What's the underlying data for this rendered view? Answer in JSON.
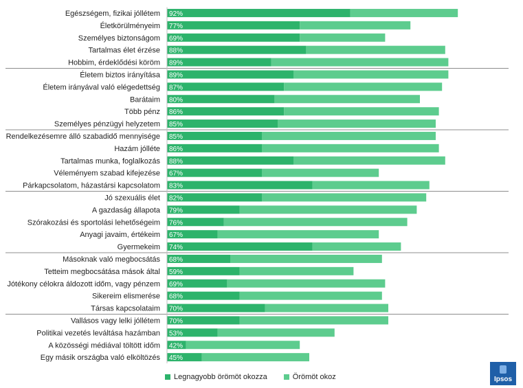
{
  "chart_data": {
    "type": "bar",
    "stacked": true,
    "orientation": "horizontal",
    "colors": {
      "series_0": "#2db36b",
      "series_1": "#5dcc8e",
      "separator": "#8c8c8c"
    },
    "series": [
      {
        "name": "Legnagyobb örömöt okozza",
        "values": [
          58,
          42,
          42,
          44,
          33,
          40,
          37,
          34,
          37,
          35,
          30,
          30,
          40,
          30,
          46,
          30,
          23,
          18,
          16,
          46,
          20,
          23,
          19,
          23,
          31,
          23,
          16,
          6,
          11
        ]
      },
      {
        "name": "Örömöt okoz",
        "values": [
          34,
          35,
          27,
          44,
          56,
          49,
          50,
          46,
          49,
          50,
          55,
          56,
          48,
          37,
          37,
          52,
          56,
          58,
          51,
          28,
          48,
          36,
          50,
          45,
          39,
          47,
          37,
          36,
          34
        ]
      }
    ],
    "categories": [
      "Egészségem, fizikai jóllétem",
      "Életkörülményeim",
      "Személyes biztonságom",
      "Tartalmas élet érzése",
      "Hobbim, érdeklődési köröm",
      "Életem biztos irányítása",
      "Életem irányával való elégedettség",
      "Barátaim",
      "Több pénz",
      "Személyes pénzügyi helyzetem",
      "Rendelkezésemre álló szabadidő mennyisége",
      "Hazám jólléte",
      "Tartalmas munka, foglalkozás",
      "Véleményem szabad kifejezése",
      "Párkapcsolatom, házastársi kapcsolatom",
      "Jó szexuális élet",
      "A gazdaság állapota",
      "Szórakozási és sportolási lehetőségeim",
      "Anyagi javaim, értékeim",
      "Gyermekeim",
      "Másoknak való megbocsátás",
      "Tetteim megbocsátása mások által",
      "Jótékony célokra áldozott időm, vagy pénzem",
      "Sikereim elismerése",
      "Társas kapcsolataim",
      "Vallásos vagy lelki jóllétem",
      "Politikai vezetés leváltása hazámban",
      "A közösségi médiával töltött időm",
      "Egy másik országba való elköltözés"
    ],
    "total_labels": [
      "92%",
      "77%",
      "69%",
      "88%",
      "89%",
      "89%",
      "87%",
      "80%",
      "86%",
      "85%",
      "85%",
      "86%",
      "88%",
      "67%",
      "83%",
      "82%",
      "79%",
      "76%",
      "67%",
      "74%",
      "68%",
      "59%",
      "69%",
      "68%",
      "70%",
      "70%",
      "53%",
      "42%",
      "45%"
    ],
    "group_separators_after": [
      4,
      9,
      14,
      19,
      24
    ],
    "xlim": [
      0,
      100
    ],
    "grid": false,
    "legend_position": "bottom"
  },
  "brand": {
    "logo_text": "Ipsos",
    "logo_color": "#1f5fa8"
  }
}
